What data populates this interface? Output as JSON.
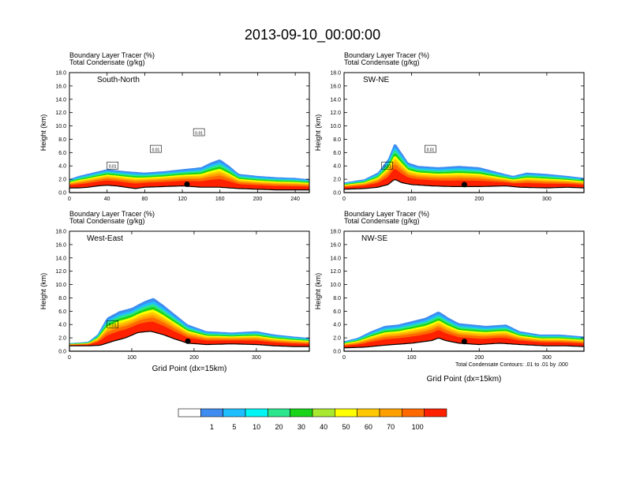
{
  "figure": {
    "title": "2013-09-10_00:00:00",
    "panel_header_line1": "Boundary Layer Tracer    (%)",
    "panel_header_line2": "Total Condensate    (g/kg)",
    "ylabel": "Height (km)",
    "xlabel": "Grid Point (dx=15km)",
    "contour_note": "Total Condensate Contours: .01 to .01 by .000"
  },
  "colorbar": {
    "colors": [
      "#ffffff",
      "#3f8cf0",
      "#1fbfff",
      "#00f5f5",
      "#2be68c",
      "#19d419",
      "#a8e830",
      "#ffff00",
      "#ffc800",
      "#ffa000",
      "#ff6a00",
      "#ff2000"
    ],
    "labels": [
      "1",
      "5",
      "10",
      "20",
      "30",
      "40",
      "50",
      "60",
      "70",
      "100"
    ]
  },
  "chart_data": [
    {
      "type": "heatmap",
      "name": "South-North",
      "xlim": [
        0,
        255
      ],
      "ylim": [
        0,
        18
      ],
      "xticks": [
        0,
        40,
        80,
        120,
        160,
        200,
        240
      ],
      "yticks": [
        0.0,
        2.0,
        4.0,
        6.0,
        8.0,
        10.0,
        12.0,
        14.0,
        16.0,
        18.0
      ],
      "marker_x": 125,
      "terrain": [
        [
          0,
          0.7
        ],
        [
          10,
          0.7
        ],
        [
          20,
          0.8
        ],
        [
          30,
          1.0
        ],
        [
          40,
          1.1
        ],
        [
          50,
          1.0
        ],
        [
          60,
          0.8
        ],
        [
          70,
          0.6
        ],
        [
          80,
          0.8
        ],
        [
          100,
          0.9
        ],
        [
          120,
          1.0
        ],
        [
          140,
          0.8
        ],
        [
          160,
          0.8
        ],
        [
          180,
          0.6
        ],
        [
          200,
          0.5
        ],
        [
          220,
          0.4
        ],
        [
          240,
          0.4
        ],
        [
          255,
          0.4
        ]
      ],
      "bl_top": [
        [
          0,
          2.0
        ],
        [
          10,
          2.5
        ],
        [
          25,
          3.0
        ],
        [
          40,
          3.5
        ],
        [
          60,
          3.2
        ],
        [
          80,
          3.0
        ],
        [
          100,
          3.2
        ],
        [
          120,
          3.5
        ],
        [
          140,
          3.8
        ],
        [
          150,
          4.5
        ],
        [
          160,
          5.0
        ],
        [
          170,
          4.0
        ],
        [
          180,
          2.8
        ],
        [
          200,
          2.5
        ],
        [
          220,
          2.3
        ],
        [
          240,
          2.2
        ],
        [
          255,
          2.0
        ]
      ],
      "annotations": [
        "0.01",
        "0.01",
        "0.01"
      ]
    },
    {
      "type": "heatmap",
      "name": "SW-NE",
      "xlim": [
        0,
        355
      ],
      "ylim": [
        0,
        18
      ],
      "xticks": [
        0,
        100,
        200,
        300
      ],
      "yticks": [
        0.0,
        2.0,
        4.0,
        6.0,
        8.0,
        10.0,
        12.0,
        14.0,
        16.0,
        18.0
      ],
      "marker_x": 178,
      "terrain": [
        [
          0,
          0.5
        ],
        [
          30,
          0.6
        ],
        [
          50,
          0.8
        ],
        [
          65,
          1.2
        ],
        [
          75,
          2.0
        ],
        [
          85,
          1.5
        ],
        [
          100,
          1.2
        ],
        [
          130,
          1.0
        ],
        [
          160,
          0.9
        ],
        [
          200,
          0.9
        ],
        [
          240,
          1.0
        ],
        [
          260,
          0.8
        ],
        [
          300,
          0.7
        ],
        [
          330,
          0.8
        ],
        [
          355,
          0.7
        ]
      ],
      "bl_top": [
        [
          0,
          1.5
        ],
        [
          30,
          2.0
        ],
        [
          50,
          3.0
        ],
        [
          65,
          5.0
        ],
        [
          75,
          7.5
        ],
        [
          85,
          6.0
        ],
        [
          95,
          4.5
        ],
        [
          110,
          4.0
        ],
        [
          140,
          3.8
        ],
        [
          170,
          4.0
        ],
        [
          200,
          3.8
        ],
        [
          230,
          3.0
        ],
        [
          250,
          2.5
        ],
        [
          270,
          3.0
        ],
        [
          300,
          2.8
        ],
        [
          330,
          2.5
        ],
        [
          355,
          2.2
        ]
      ],
      "annotations": [
        "0.01",
        "0.01"
      ]
    },
    {
      "type": "heatmap",
      "name": "West-East",
      "xlim": [
        0,
        385
      ],
      "ylim": [
        0,
        18
      ],
      "xticks": [
        0,
        100,
        200,
        300
      ],
      "yticks": [
        0.0,
        2.0,
        4.0,
        6.0,
        8.0,
        10.0,
        12.0,
        14.0,
        16.0,
        18.0
      ],
      "marker_x": 190,
      "terrain": [
        [
          0,
          0.8
        ],
        [
          30,
          0.8
        ],
        [
          50,
          0.9
        ],
        [
          70,
          1.5
        ],
        [
          90,
          2.0
        ],
        [
          110,
          2.8
        ],
        [
          130,
          3.0
        ],
        [
          150,
          2.5
        ],
        [
          170,
          1.8
        ],
        [
          190,
          1.2
        ],
        [
          220,
          1.0
        ],
        [
          260,
          1.1
        ],
        [
          300,
          1.0
        ],
        [
          330,
          0.8
        ],
        [
          360,
          0.7
        ],
        [
          385,
          0.7
        ]
      ],
      "bl_top": [
        [
          0,
          1.2
        ],
        [
          30,
          1.4
        ],
        [
          45,
          2.5
        ],
        [
          60,
          5.0
        ],
        [
          80,
          6.0
        ],
        [
          100,
          6.5
        ],
        [
          120,
          7.5
        ],
        [
          135,
          8.0
        ],
        [
          150,
          7.0
        ],
        [
          170,
          5.5
        ],
        [
          190,
          4.0
        ],
        [
          220,
          3.0
        ],
        [
          260,
          2.8
        ],
        [
          300,
          3.0
        ],
        [
          330,
          2.5
        ],
        [
          360,
          2.2
        ],
        [
          385,
          2.0
        ]
      ],
      "annotations": [
        "0.01"
      ]
    },
    {
      "type": "heatmap",
      "name": "NW-SE",
      "xlim": [
        0,
        355
      ],
      "ylim": [
        0,
        18
      ],
      "xticks": [
        0,
        100,
        200,
        300
      ],
      "yticks": [
        0.0,
        2.0,
        4.0,
        6.0,
        8.0,
        10.0,
        12.0,
        14.0,
        16.0,
        18.0
      ],
      "marker_x": 178,
      "terrain": [
        [
          0,
          0.5
        ],
        [
          30,
          0.6
        ],
        [
          60,
          0.9
        ],
        [
          100,
          1.2
        ],
        [
          130,
          1.6
        ],
        [
          140,
          2.0
        ],
        [
          150,
          1.6
        ],
        [
          170,
          1.2
        ],
        [
          200,
          1.0
        ],
        [
          230,
          1.2
        ],
        [
          260,
          1.0
        ],
        [
          300,
          0.8
        ],
        [
          330,
          0.8
        ],
        [
          355,
          0.7
        ]
      ],
      "bl_top": [
        [
          0,
          1.5
        ],
        [
          20,
          2.0
        ],
        [
          40,
          3.0
        ],
        [
          60,
          3.8
        ],
        [
          80,
          4.0
        ],
        [
          100,
          4.5
        ],
        [
          120,
          5.0
        ],
        [
          140,
          6.0
        ],
        [
          155,
          5.0
        ],
        [
          170,
          4.2
        ],
        [
          190,
          4.0
        ],
        [
          210,
          3.8
        ],
        [
          240,
          4.0
        ],
        [
          260,
          3.0
        ],
        [
          290,
          2.5
        ],
        [
          320,
          2.5
        ],
        [
          355,
          2.2
        ]
      ],
      "annotations": []
    }
  ]
}
